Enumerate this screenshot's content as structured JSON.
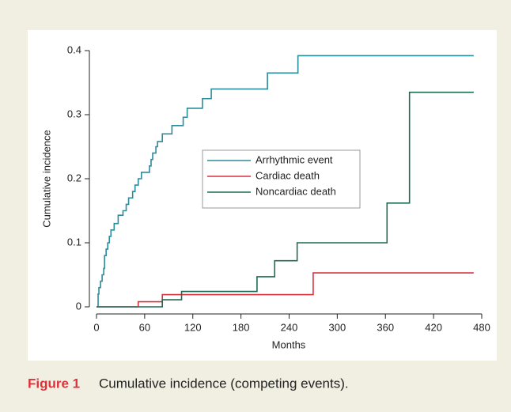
{
  "chart_data": {
    "type": "line",
    "step": true,
    "xlabel": "Months",
    "ylabel": "Cumulative incidence",
    "xlim": [
      0,
      480
    ],
    "xticks": [
      0,
      60,
      120,
      180,
      240,
      300,
      360,
      420,
      480
    ],
    "ylim": [
      0,
      0.4
    ],
    "yticks": [
      0,
      0.1,
      0.2,
      0.3,
      0.4
    ],
    "legend": "center",
    "series": [
      {
        "name": "Arrhythmic event",
        "color": "#2b8c9c",
        "x": [
          0,
          2,
          3,
          5,
          7,
          9,
          10,
          12,
          14,
          16,
          18,
          22,
          27,
          33,
          37,
          40,
          45,
          48,
          52,
          56,
          66,
          68,
          70,
          74,
          76,
          82,
          94,
          108,
          113,
          132,
          143,
          213,
          251,
          470
        ],
        "values": [
          0,
          0.02,
          0.03,
          0.04,
          0.05,
          0.06,
          0.08,
          0.09,
          0.1,
          0.11,
          0.12,
          0.13,
          0.143,
          0.15,
          0.16,
          0.17,
          0.18,
          0.19,
          0.2,
          0.21,
          0.22,
          0.23,
          0.24,
          0.25,
          0.258,
          0.27,
          0.283,
          0.296,
          0.31,
          0.325,
          0.34,
          0.365,
          0.392,
          0.392
        ]
      },
      {
        "name": "Cardiac death",
        "color": "#d8323f",
        "x": [
          0,
          52,
          82,
          270,
          470
        ],
        "values": [
          0,
          0.008,
          0.019,
          0.053,
          0.053
        ]
      },
      {
        "name": "Noncardiac death",
        "color": "#1d6b52",
        "x": [
          0,
          82,
          106,
          200,
          222,
          250,
          362,
          390,
          470
        ],
        "values": [
          0,
          0.011,
          0.024,
          0.047,
          0.072,
          0.1,
          0.162,
          0.335,
          0.335
        ]
      }
    ]
  },
  "caption": {
    "label": "Figure 1",
    "text": "Cumulative incidence (competing events)."
  }
}
